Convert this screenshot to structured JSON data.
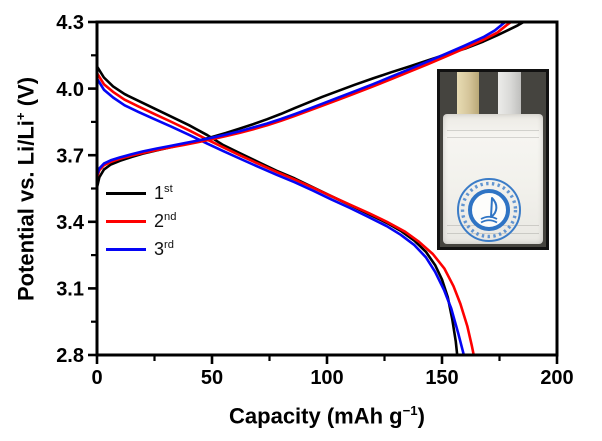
{
  "chart_data": {
    "type": "line",
    "title": "",
    "xlabel_parts": {
      "pre": "Capacity (mAh g",
      "sup": "−1",
      "post": ")"
    },
    "ylabel_parts": {
      "pre": "Potential vs. Li/Li",
      "sup": "+",
      "post": " (V)"
    },
    "xlim": [
      0,
      200
    ],
    "ylim": [
      2.8,
      4.3
    ],
    "x_ticks": [
      0,
      50,
      100,
      150,
      200
    ],
    "x_minor_ticks": [
      25,
      75,
      125,
      175
    ],
    "y_ticks": [
      2.8,
      3.1,
      3.4,
      3.7,
      4.0,
      4.3
    ],
    "y_minor_ticks": [
      2.95,
      3.25,
      3.55,
      3.85,
      4.15
    ],
    "grid": false,
    "legend_position": "inside-left-middle",
    "legend": [
      {
        "label": "1",
        "sup": "st",
        "color": "#000000"
      },
      {
        "label": "2",
        "sup": "nd",
        "color": "#fe0000"
      },
      {
        "label": "3",
        "sup": "rd",
        "color": "#0505f5"
      }
    ],
    "series": [
      {
        "name": "1st cycle discharge",
        "color": "#000000",
        "points": [
          [
            0,
            4.1
          ],
          [
            3,
            4.05
          ],
          [
            7,
            4.01
          ],
          [
            12,
            3.975
          ],
          [
            18,
            3.945
          ],
          [
            25,
            3.91
          ],
          [
            32,
            3.875
          ],
          [
            40,
            3.835
          ],
          [
            48,
            3.79
          ],
          [
            55,
            3.745
          ],
          [
            62,
            3.71
          ],
          [
            70,
            3.67
          ],
          [
            78,
            3.63
          ],
          [
            86,
            3.595
          ],
          [
            94,
            3.555
          ],
          [
            102,
            3.515
          ],
          [
            110,
            3.475
          ],
          [
            118,
            3.435
          ],
          [
            126,
            3.395
          ],
          [
            132,
            3.36
          ],
          [
            138,
            3.315
          ],
          [
            143,
            3.265
          ],
          [
            147,
            3.205
          ],
          [
            150,
            3.14
          ],
          [
            152.5,
            3.06
          ],
          [
            154.5,
            2.96
          ],
          [
            156,
            2.86
          ],
          [
            156.6,
            2.8
          ]
        ]
      },
      {
        "name": "2nd cycle discharge",
        "color": "#fe0000",
        "points": [
          [
            0,
            4.07
          ],
          [
            3,
            4.02
          ],
          [
            7,
            3.985
          ],
          [
            12,
            3.95
          ],
          [
            18,
            3.92
          ],
          [
            25,
            3.885
          ],
          [
            32,
            3.852
          ],
          [
            40,
            3.812
          ],
          [
            48,
            3.77
          ],
          [
            55,
            3.735
          ],
          [
            62,
            3.7
          ],
          [
            70,
            3.662
          ],
          [
            78,
            3.625
          ],
          [
            86,
            3.59
          ],
          [
            94,
            3.553
          ],
          [
            102,
            3.515
          ],
          [
            110,
            3.477
          ],
          [
            118,
            3.44
          ],
          [
            126,
            3.4
          ],
          [
            134,
            3.355
          ],
          [
            140,
            3.31
          ],
          [
            146,
            3.255
          ],
          [
            151,
            3.19
          ],
          [
            155,
            3.11
          ],
          [
            158,
            3.03
          ],
          [
            161,
            2.93
          ],
          [
            163,
            2.84
          ],
          [
            163.8,
            2.8
          ]
        ]
      },
      {
        "name": "3rd cycle discharge",
        "color": "#0505f5",
        "points": [
          [
            0,
            4.045
          ],
          [
            3,
            3.995
          ],
          [
            7,
            3.96
          ],
          [
            12,
            3.925
          ],
          [
            18,
            3.895
          ],
          [
            25,
            3.862
          ],
          [
            32,
            3.83
          ],
          [
            40,
            3.792
          ],
          [
            48,
            3.752
          ],
          [
            55,
            3.718
          ],
          [
            62,
            3.685
          ],
          [
            70,
            3.648
          ],
          [
            78,
            3.612
          ],
          [
            86,
            3.578
          ],
          [
            94,
            3.54
          ],
          [
            102,
            3.5
          ],
          [
            110,
            3.462
          ],
          [
            118,
            3.422
          ],
          [
            126,
            3.38
          ],
          [
            132,
            3.342
          ],
          [
            138,
            3.295
          ],
          [
            143,
            3.24
          ],
          [
            147,
            3.175
          ],
          [
            151,
            3.09
          ],
          [
            154,
            3.01
          ],
          [
            157,
            2.9
          ],
          [
            159,
            2.82
          ],
          [
            159.5,
            2.8
          ]
        ]
      },
      {
        "name": "1st cycle charge",
        "color": "#000000",
        "points": [
          [
            0,
            3.555
          ],
          [
            1,
            3.6
          ],
          [
            3,
            3.635
          ],
          [
            6,
            3.658
          ],
          [
            10,
            3.675
          ],
          [
            15,
            3.692
          ],
          [
            20,
            3.707
          ],
          [
            26,
            3.722
          ],
          [
            32,
            3.736
          ],
          [
            38,
            3.75
          ],
          [
            44,
            3.765
          ],
          [
            50,
            3.782
          ],
          [
            56,
            3.8
          ],
          [
            62,
            3.82
          ],
          [
            68,
            3.84
          ],
          [
            74,
            3.862
          ],
          [
            80,
            3.886
          ],
          [
            86,
            3.912
          ],
          [
            92,
            3.938
          ],
          [
            98,
            3.963
          ],
          [
            105,
            3.99
          ],
          [
            112,
            4.017
          ],
          [
            120,
            4.046
          ],
          [
            128,
            4.074
          ],
          [
            136,
            4.1
          ],
          [
            144,
            4.128
          ],
          [
            152,
            4.155
          ],
          [
            160,
            4.18
          ],
          [
            168,
            4.212
          ],
          [
            174,
            4.24
          ],
          [
            179,
            4.265
          ],
          [
            183,
            4.285
          ],
          [
            185.5,
            4.3
          ]
        ]
      },
      {
        "name": "2nd cycle charge",
        "color": "#fe0000",
        "points": [
          [
            0,
            3.6
          ],
          [
            1,
            3.632
          ],
          [
            3,
            3.655
          ],
          [
            6,
            3.67
          ],
          [
            10,
            3.684
          ],
          [
            15,
            3.698
          ],
          [
            20,
            3.71
          ],
          [
            26,
            3.723
          ],
          [
            32,
            3.735
          ],
          [
            38,
            3.747
          ],
          [
            44,
            3.759
          ],
          [
            50,
            3.772
          ],
          [
            56,
            3.786
          ],
          [
            62,
            3.801
          ],
          [
            68,
            3.817
          ],
          [
            74,
            3.835
          ],
          [
            80,
            3.855
          ],
          [
            86,
            3.877
          ],
          [
            92,
            3.9
          ],
          [
            98,
            3.923
          ],
          [
            105,
            3.95
          ],
          [
            112,
            3.978
          ],
          [
            120,
            4.01
          ],
          [
            128,
            4.043
          ],
          [
            136,
            4.077
          ],
          [
            144,
            4.111
          ],
          [
            152,
            4.146
          ],
          [
            160,
            4.182
          ],
          [
            168,
            4.22
          ],
          [
            174,
            4.252
          ],
          [
            178,
            4.285
          ],
          [
            180,
            4.3
          ]
        ]
      },
      {
        "name": "3rd cycle charge",
        "color": "#0505f5",
        "points": [
          [
            0,
            3.61
          ],
          [
            1,
            3.64
          ],
          [
            3,
            3.662
          ],
          [
            6,
            3.677
          ],
          [
            10,
            3.69
          ],
          [
            15,
            3.704
          ],
          [
            20,
            3.717
          ],
          [
            26,
            3.73
          ],
          [
            32,
            3.742
          ],
          [
            38,
            3.754
          ],
          [
            44,
            3.766
          ],
          [
            50,
            3.779
          ],
          [
            56,
            3.793
          ],
          [
            62,
            3.808
          ],
          [
            68,
            3.825
          ],
          [
            74,
            3.843
          ],
          [
            80,
            3.863
          ],
          [
            86,
            3.885
          ],
          [
            92,
            3.908
          ],
          [
            98,
            3.932
          ],
          [
            105,
            3.96
          ],
          [
            112,
            3.988
          ],
          [
            120,
            4.02
          ],
          [
            128,
            4.054
          ],
          [
            136,
            4.088
          ],
          [
            144,
            4.123
          ],
          [
            152,
            4.158
          ],
          [
            160,
            4.194
          ],
          [
            168,
            4.232
          ],
          [
            173,
            4.262
          ],
          [
            176,
            4.288
          ],
          [
            177.5,
            4.3
          ]
        ]
      }
    ]
  },
  "inset": {
    "content": "photo of assembled pouch cell with two electrode tabs and blue circular university seal",
    "colors": {
      "photo_bg": "#45443f",
      "tab_gold": "#d5c59a",
      "tab_silver": "#d9d9d7",
      "pouch": "#f2f1ec",
      "seal_blue": "#2f74c4"
    }
  }
}
